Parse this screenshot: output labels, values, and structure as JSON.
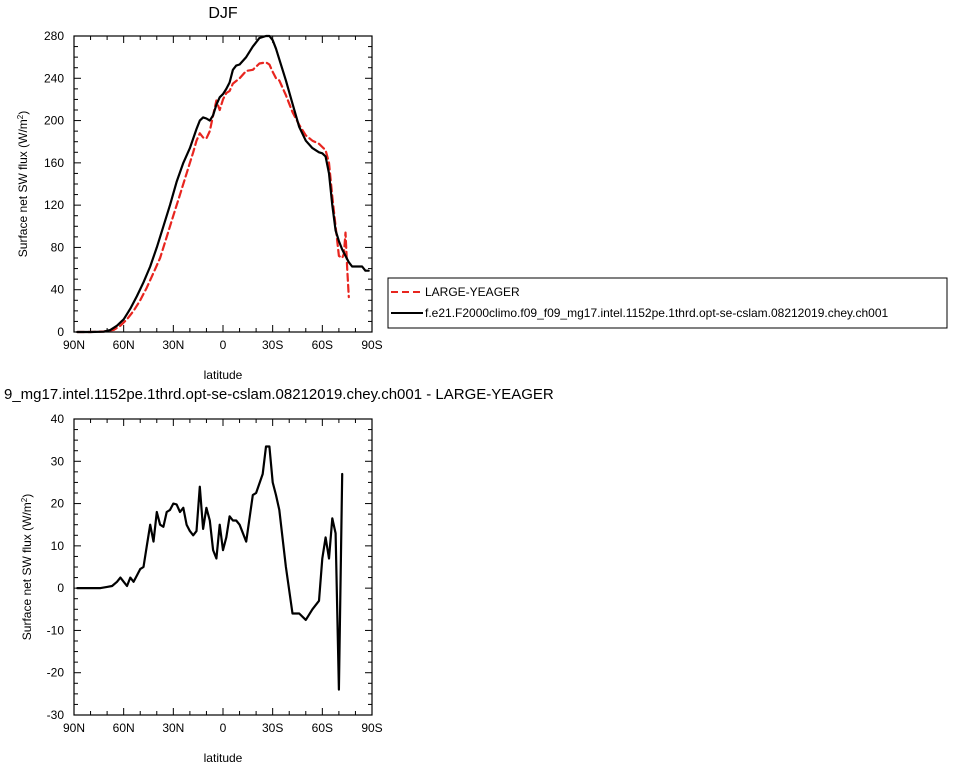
{
  "chart_data": [
    {
      "type": "line",
      "title": "DJF",
      "xlabel": "latitude",
      "ylabel": "Surface net SW flux (W/m²)",
      "ylim": [
        0,
        280
      ],
      "xlim": [
        90,
        -90
      ],
      "x_ticks": [
        90,
        60,
        30,
        0,
        -30,
        -60,
        -90
      ],
      "x_tick_labels": [
        "90N",
        "60N",
        "30N",
        "0",
        "30S",
        "60S",
        "90S"
      ],
      "y_ticks": [
        0,
        40,
        80,
        120,
        160,
        200,
        240,
        280
      ],
      "legend": "right",
      "series": [
        {
          "name": "LARGE-YEAGER",
          "color": "#e8251f",
          "dash": "dashed",
          "x": [
            88,
            80,
            72,
            66,
            62,
            58,
            54,
            50,
            46,
            42,
            38,
            34,
            30,
            26,
            22,
            18,
            16,
            14,
            12,
            10,
            8,
            6,
            4,
            2,
            0,
            -2,
            -4,
            -6,
            -10,
            -14,
            -18,
            -22,
            -26,
            -28,
            -30,
            -32,
            -34,
            -38,
            -42,
            -46,
            -50,
            -54,
            -58,
            -60,
            -62,
            -64,
            -66,
            -68,
            -70,
            -72,
            -73,
            -74,
            -75,
            -76
          ],
          "values": [
            0,
            0,
            0.5,
            2,
            6,
            12,
            20,
            30,
            42,
            56,
            70,
            90,
            110,
            130,
            150,
            170,
            181,
            188,
            184,
            183,
            190,
            205,
            219,
            210,
            220,
            226,
            228,
            235,
            240,
            247,
            248,
            254,
            255,
            253,
            246,
            240,
            238,
            224,
            208,
            196,
            186,
            181,
            178,
            175,
            172,
            160,
            128,
            100,
            72,
            70,
            74,
            94,
            60,
            33
          ]
        },
        {
          "name": "f.e21.F2000climo.f09_f09_mg17.intel.1152pe.1thrd.opt-se-cslam.08212019.chey.ch001",
          "color": "#000000",
          "dash": "solid",
          "x": [
            88,
            80,
            72,
            68,
            64,
            60,
            56,
            52,
            48,
            44,
            40,
            36,
            32,
            28,
            24,
            20,
            16,
            14,
            12,
            10,
            8,
            6,
            4,
            2,
            0,
            -2,
            -4,
            -6,
            -8,
            -10,
            -14,
            -18,
            -22,
            -26,
            -28,
            -30,
            -32,
            -34,
            -38,
            -42,
            -46,
            -50,
            -54,
            -58,
            -60,
            -62,
            -64,
            -66,
            -68,
            -70,
            -72,
            -74,
            -76,
            -78,
            -80,
            -84,
            -86,
            -88
          ],
          "values": [
            0,
            0,
            0.3,
            2,
            6,
            12,
            22,
            34,
            47,
            62,
            80,
            100,
            120,
            142,
            160,
            174,
            192,
            200,
            203,
            202,
            200,
            205,
            215,
            222,
            225,
            230,
            236,
            248,
            252,
            253,
            260,
            270,
            278,
            280,
            280,
            276,
            268,
            258,
            238,
            216,
            194,
            181,
            174,
            170,
            169,
            166,
            150,
            120,
            96,
            86,
            78,
            72,
            66,
            62,
            62,
            62,
            58,
            58
          ]
        }
      ]
    },
    {
      "type": "line",
      "title": "9_mg17.intel.1152pe.1thrd.opt-se-cslam.08212019.chey.ch001 - LARGE-YEAGER",
      "xlabel": "latitude",
      "ylabel": "Surface net SW flux (W/m²)",
      "ylim": [
        -30,
        40
      ],
      "xlim": [
        90,
        -90
      ],
      "x_ticks": [
        90,
        60,
        30,
        0,
        -30,
        -60,
        -90
      ],
      "x_tick_labels": [
        "90N",
        "60N",
        "30N",
        "0",
        "30S",
        "60S",
        "90S"
      ],
      "y_ticks": [
        -30,
        -20,
        -10,
        0,
        10,
        20,
        30,
        40
      ],
      "series": [
        {
          "color": "#000000",
          "dash": "solid",
          "x": [
            88,
            80,
            74,
            70,
            67,
            64,
            62,
            60,
            58,
            56,
            54,
            52,
            50,
            48,
            46,
            44,
            42,
            40,
            38,
            36,
            34,
            32,
            30,
            28,
            26,
            24,
            22,
            20,
            18,
            16,
            14,
            12,
            10,
            8,
            6,
            4,
            2,
            0,
            -2,
            -4,
            -6,
            -8,
            -10,
            -14,
            -18,
            -20,
            -24,
            -26,
            -28,
            -30,
            -32,
            -34,
            -38,
            -42,
            -46,
            -50,
            -54,
            -58,
            -60,
            -62,
            -64,
            -66,
            -68,
            -70,
            -72,
            -74,
            -76
          ],
          "values": [
            0,
            0,
            0,
            0.3,
            0.5,
            1.5,
            2.5,
            1.5,
            0.5,
            2.5,
            1.5,
            3,
            4.5,
            5,
            10,
            15,
            11,
            18,
            15,
            14.5,
            18,
            18.5,
            20,
            19.8,
            18,
            19,
            15,
            13.5,
            12.5,
            13.5,
            24,
            14,
            19,
            16,
            9,
            7,
            15,
            9,
            12,
            17,
            16,
            16,
            15,
            11,
            22,
            22.5,
            27,
            33.5,
            33.5,
            25,
            22,
            18.5,
            5,
            -6,
            -6,
            -7.5,
            -5,
            -3,
            7,
            12,
            7,
            16.5,
            13,
            -24,
            27,
            null,
            null
          ]
        }
      ]
    }
  ]
}
